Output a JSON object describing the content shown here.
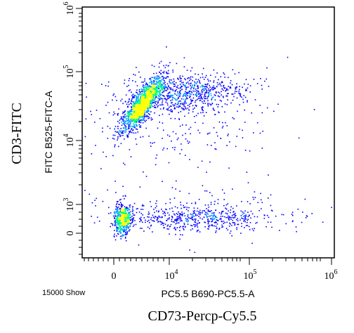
{
  "chart_data": {
    "type": "scatter",
    "subtype": "flow-cytometry-density-dot-plot",
    "x_axis": {
      "label": "PC5.5 B690-PC5.5-A",
      "scale": "biexponential",
      "tick_labels": [
        "0",
        "10^4",
        "10^5",
        "10^6"
      ],
      "range": [
        -3000,
        1000000
      ]
    },
    "y_axis": {
      "label": "FITC B525-FITC-A",
      "scale": "biexponential",
      "tick_labels": [
        "0",
        "10^3",
        "10^4",
        "10^5",
        "10^6"
      ],
      "range": [
        -500,
        1000000
      ]
    },
    "outer_xlabel": "CD73-Percp-Cy5.5",
    "outer_ylabel": "CD3-FITC",
    "event_count_label": "15000 Show",
    "grid": false,
    "colormap": [
      "#0000ff",
      "#00a0ff",
      "#00ff80",
      "#ffff00"
    ],
    "populations": [
      {
        "name": "",
        "x_center": 5000,
        "y_center": 40000,
        "relative_density": "high"
      },
      {
        "name": "",
        "x_center": 30000,
        "y_center": 50000,
        "relative_density": "medium"
      },
      {
        "name": "",
        "x_center": 800,
        "y_center": 200,
        "relative_density": "high"
      },
      {
        "name": "",
        "x_center": 50000,
        "y_center": 200,
        "relative_density": "low"
      }
    ]
  }
}
